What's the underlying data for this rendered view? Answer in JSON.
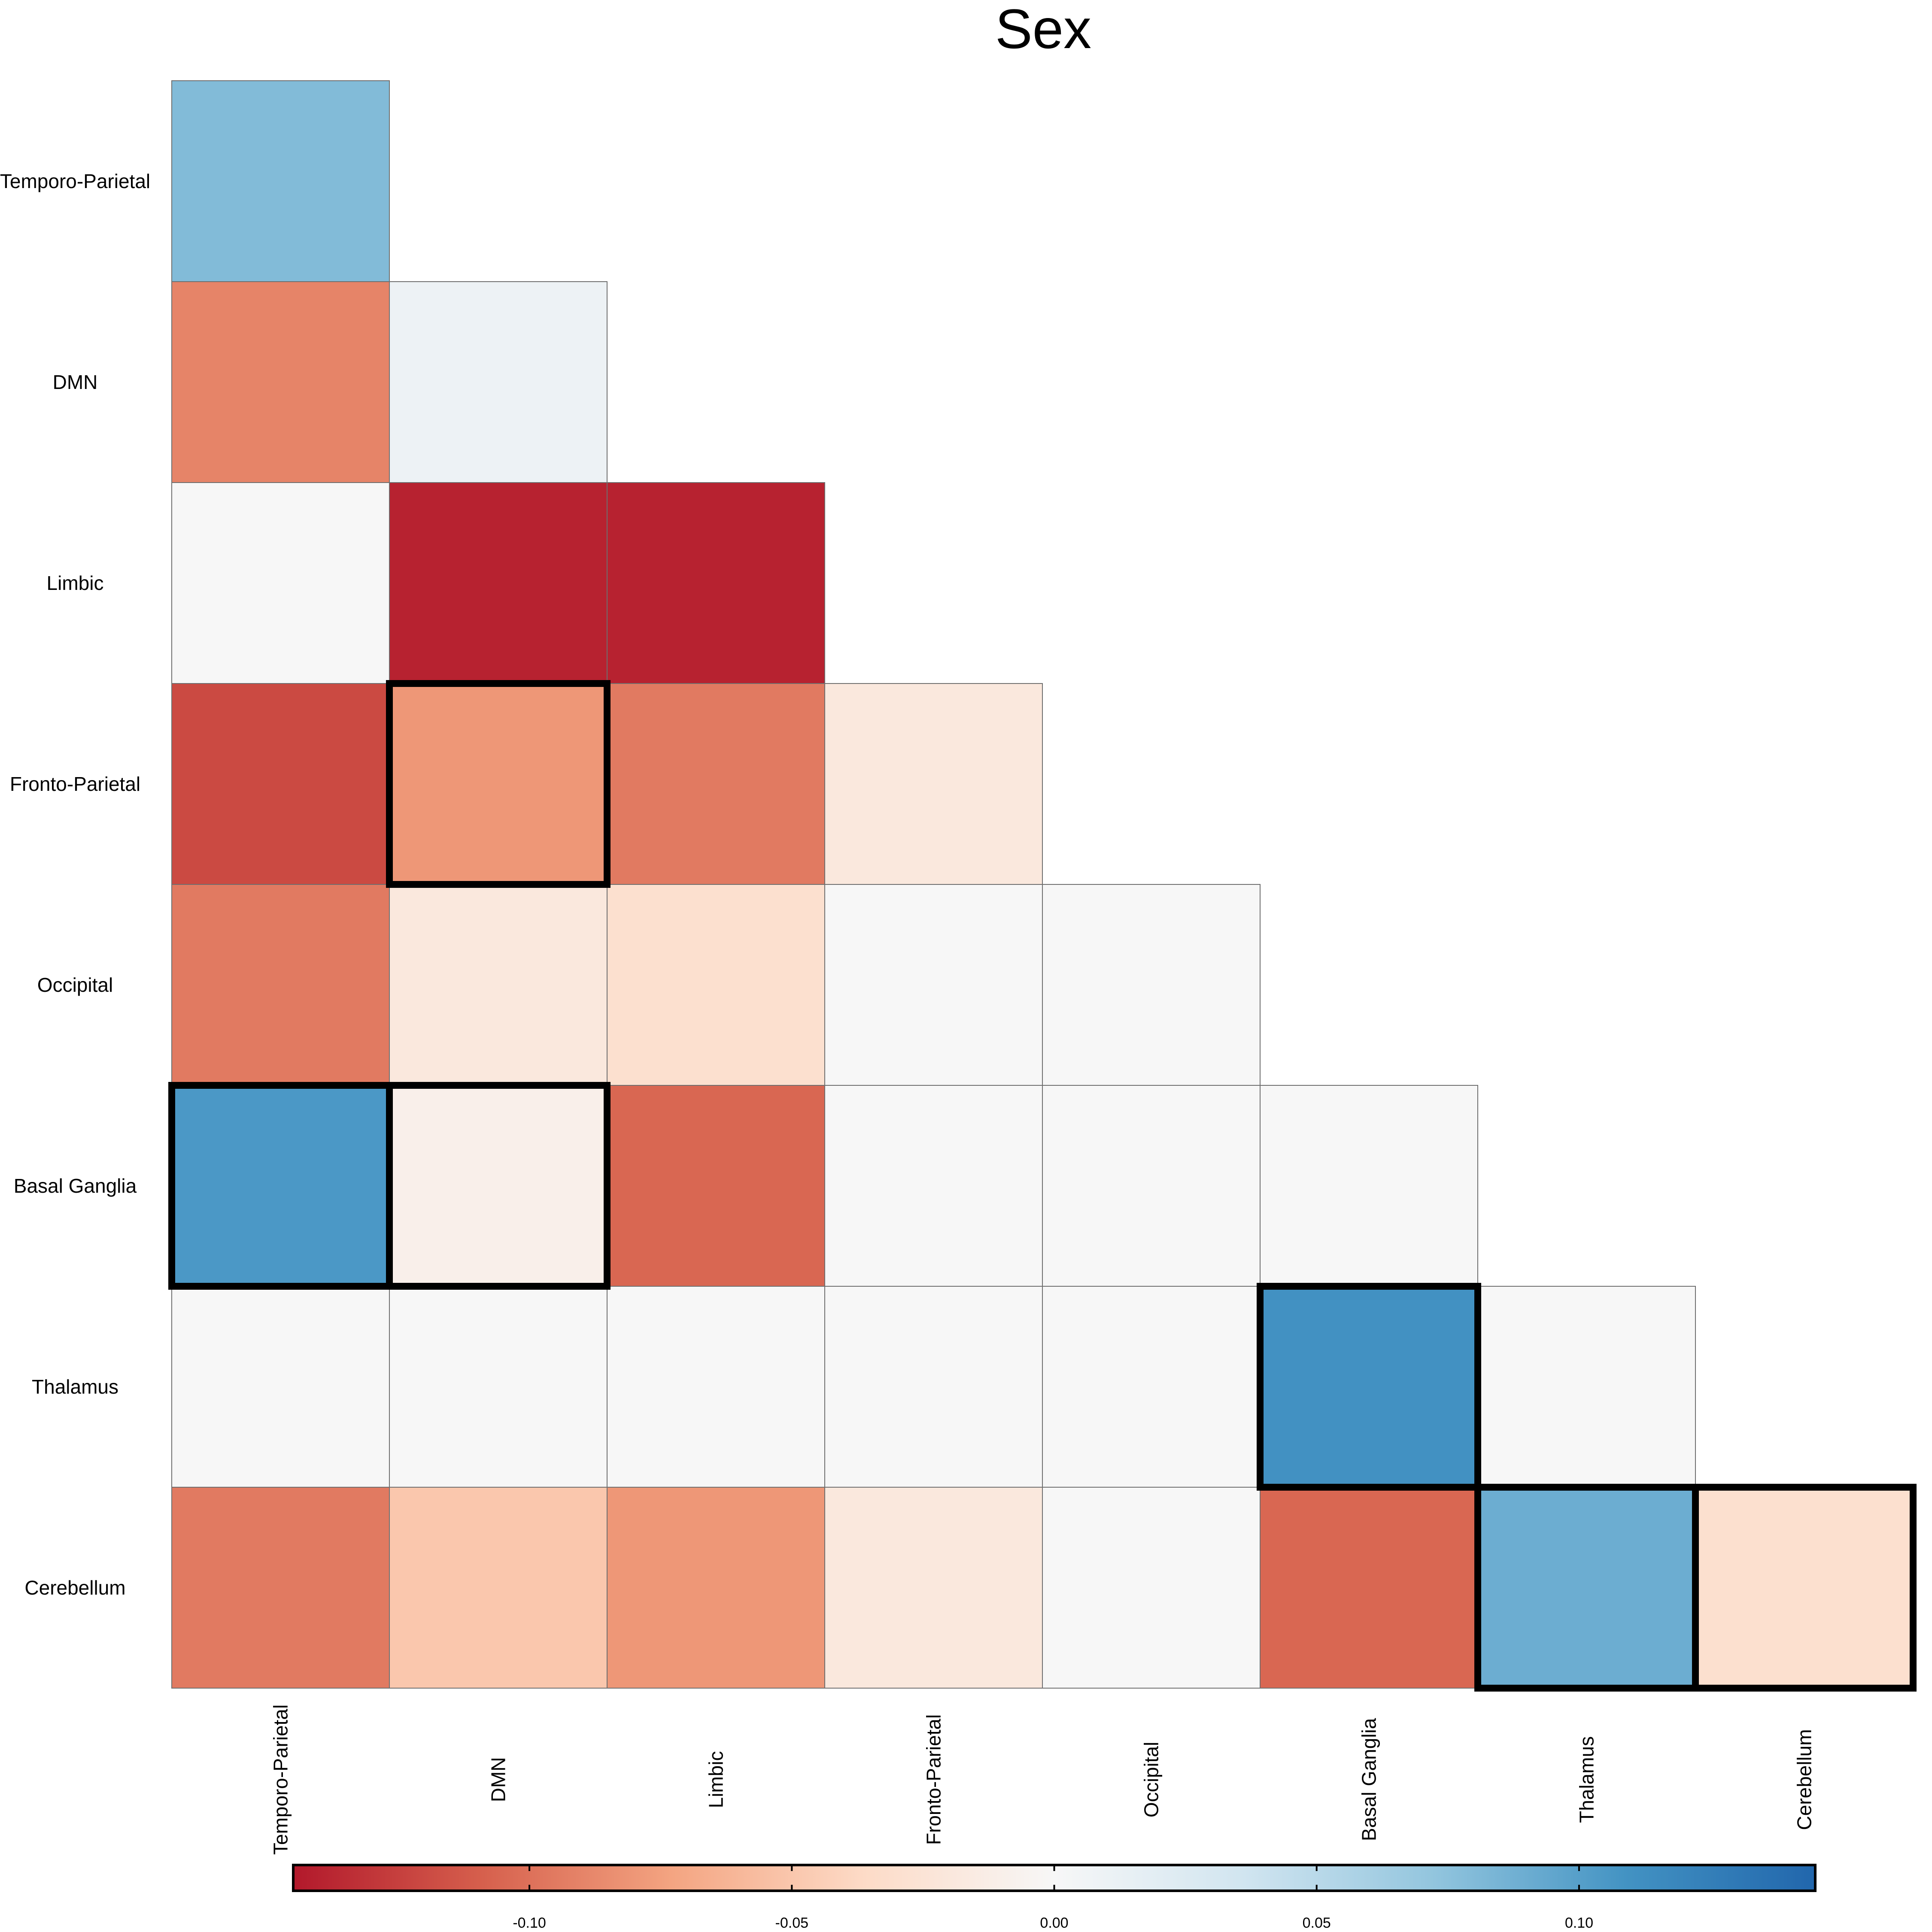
{
  "chart_data": {
    "type": "heatmap",
    "title": "Sex",
    "rows": [
      "Temporo-Parietal",
      "DMN",
      "Limbic",
      "Fronto-Parietal",
      "Occipital",
      "Basal Ganglia",
      "Thalamus",
      "Cerebellum"
    ],
    "columns": [
      "Temporo-Parietal",
      "DMN",
      "Limbic",
      "Fronto-Parietal",
      "Occipital",
      "Basal Ganglia",
      "Thalamus",
      "Cerebellum"
    ],
    "matrix": [
      [
        0.08,
        null,
        null,
        null,
        null,
        null,
        null,
        null
      ],
      [
        -0.09,
        0.01,
        null,
        null,
        null,
        null,
        null,
        null
      ],
      [
        0.0,
        -0.14,
        -0.14,
        null,
        null,
        null,
        null,
        null
      ],
      [
        -0.12,
        -0.08,
        -0.095,
        -0.02,
        null,
        null,
        null,
        null
      ],
      [
        -0.095,
        -0.02,
        -0.03,
        0.0,
        0.0,
        null,
        null,
        null
      ],
      [
        0.105,
        -0.01,
        -0.105,
        0.0,
        0.0,
        0.0,
        null,
        null
      ],
      [
        0.0,
        0.0,
        0.0,
        0.0,
        0.0,
        0.11,
        0.0,
        null
      ],
      [
        -0.095,
        -0.05,
        -0.08,
        -0.02,
        0.0,
        -0.105,
        0.09,
        -0.03
      ]
    ],
    "highlighted_cells": [
      [
        3,
        1
      ],
      [
        5,
        0
      ],
      [
        5,
        1
      ],
      [
        6,
        5
      ],
      [
        7,
        6
      ],
      [
        7,
        7
      ]
    ],
    "colorbar": {
      "range": [
        -0.145,
        0.145
      ],
      "ticks": [
        -0.1,
        -0.05,
        0.0,
        0.05,
        0.1
      ],
      "tick_labels": [
        "-0.10",
        "-0.05",
        "0.00",
        "0.05",
        "0.10"
      ],
      "position": "bottom",
      "orientation": "horizontal"
    },
    "colorscale": [
      "#b2182b",
      "#d6604d",
      "#f4a582",
      "#fddbc7",
      "#f7f7f7",
      "#d1e5f0",
      "#92c5de",
      "#4393c3",
      "#2166ac"
    ],
    "layout": "lower-triangle"
  }
}
